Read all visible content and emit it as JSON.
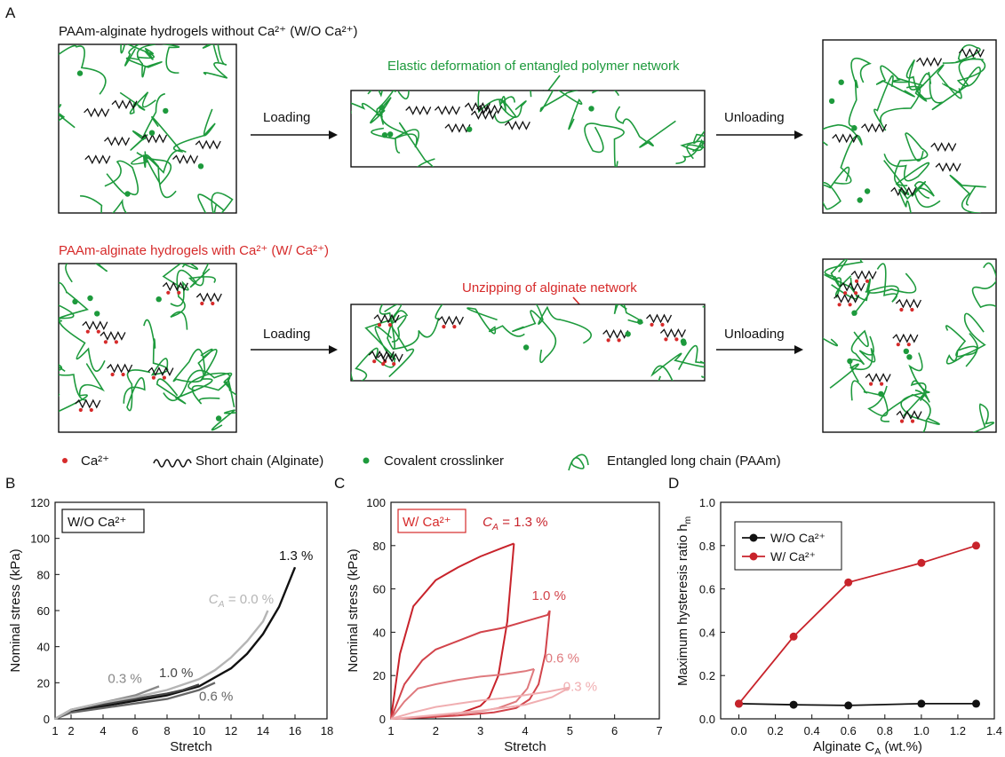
{
  "colors": {
    "green": "#1d9a3c",
    "red": "#d62a2a",
    "black": "#111111",
    "grayB": [
      "#111111",
      "#444444",
      "#666666",
      "#888888",
      "#b5b5b5"
    ],
    "redC": [
      "#c8232b",
      "#d2444b",
      "#df7a7e",
      "#f0aeb1"
    ]
  },
  "panelA": {
    "letter": "A",
    "row1_title": "PAAm-alginate hydrogels without Ca²⁺ (W/O Ca²⁺)",
    "row1_note": "Elastic deformation of entangled polymer network",
    "row2_title": "PAAm-alginate hydrogels with Ca²⁺ (W/ Ca²⁺)",
    "row2_note": "Unzipping of alginate network",
    "loading": "Loading",
    "unloading": "Unloading",
    "legend": {
      "ca": "Ca²⁺",
      "short_chain": "Short chain (Alginate)",
      "crosslinker": "Covalent crosslinker",
      "long_chain": "Entangled long chain (PAAm)"
    }
  },
  "chart_data": [
    {
      "panel": "B",
      "type": "line",
      "box_label": "W/O Ca²⁺",
      "xlabel": "Stretch",
      "ylabel": "Nominal stress (kPa)",
      "xlim": [
        1,
        18
      ],
      "ylim": [
        0,
        120
      ],
      "xticks": [
        1,
        2,
        4,
        6,
        8,
        10,
        12,
        14,
        16,
        18
      ],
      "yticks": [
        0,
        20,
        40,
        60,
        80,
        100,
        120
      ],
      "series": [
        {
          "name": "1.3 %",
          "x": [
            1,
            2,
            4,
            6,
            8,
            10,
            12,
            13,
            14,
            15,
            16
          ],
          "y": [
            0,
            4,
            7,
            10,
            13,
            18,
            28,
            36,
            47,
            62,
            84
          ]
        },
        {
          "name": "1.0 %",
          "x": [
            1,
            2,
            4,
            6,
            8,
            9,
            10
          ],
          "y": [
            0,
            5,
            8,
            11,
            14,
            16,
            19
          ]
        },
        {
          "name": "0.6 %",
          "x": [
            1,
            2,
            4,
            6,
            8,
            10,
            11
          ],
          "y": [
            0,
            3.5,
            6,
            8.5,
            11,
            16,
            20
          ]
        },
        {
          "name": "0.3 %",
          "x": [
            1,
            2,
            4,
            6,
            7.5
          ],
          "y": [
            0,
            5,
            9,
            13,
            18
          ]
        },
        {
          "name": "C_A = 0.0 %",
          "x": [
            1,
            2,
            4,
            6,
            8,
            10,
            11,
            12,
            13,
            14,
            14.3
          ],
          "y": [
            0,
            5,
            9,
            12,
            16,
            22,
            27,
            34,
            43,
            54,
            60
          ]
        }
      ],
      "labels": [
        {
          "text": "1.3 %",
          "x": 15.0,
          "y": 88
        },
        {
          "text": "C",
          "sub": "A",
          "rest": " = 0.0 %",
          "x": 10.6,
          "y": 64
        },
        {
          "text": "0.3 %",
          "x": 4.3,
          "y": 20
        },
        {
          "text": "1.0 %",
          "x": 7.5,
          "y": 23
        },
        {
          "text": "0.6 %",
          "x": 10.0,
          "y": 10
        }
      ]
    },
    {
      "panel": "C",
      "type": "line",
      "box_label": "W/ Ca²⁺",
      "xlabel": "Stretch",
      "ylabel": "Nominal stress (kPa)",
      "xlim": [
        1,
        7
      ],
      "ylim": [
        0,
        100
      ],
      "xticks": [
        1,
        2,
        3,
        4,
        5,
        6,
        7
      ],
      "yticks": [
        0,
        20,
        40,
        60,
        80,
        100
      ],
      "series": [
        {
          "name": "1.3 %",
          "load_x": [
            1,
            1.2,
            1.5,
            2,
            2.5,
            3,
            3.5,
            3.75
          ],
          "load_y": [
            0,
            30,
            52,
            64,
            70,
            75,
            79,
            81
          ],
          "unload_x": [
            3.75,
            3.6,
            3.4,
            3.2,
            3.0,
            2.6,
            2.0,
            1.5,
            1
          ],
          "unload_y": [
            81,
            45,
            20,
            10,
            6,
            3,
            1,
            0.5,
            0
          ]
        },
        {
          "name": "1.0 %",
          "load_x": [
            1,
            1.3,
            1.7,
            2,
            2.5,
            3,
            3.5,
            4,
            4.5,
            4.55
          ],
          "load_y": [
            0,
            16,
            27,
            32,
            36,
            40,
            42,
            45,
            48,
            50
          ],
          "unload_x": [
            4.55,
            4.45,
            4.3,
            4.1,
            3.8,
            3.3,
            2.5,
            1.8,
            1
          ],
          "unload_y": [
            50,
            30,
            16,
            9,
            5,
            3,
            1.5,
            0.7,
            0
          ]
        },
        {
          "name": "0.6 %",
          "load_x": [
            1,
            1.3,
            1.6,
            2,
            2.5,
            3,
            3.5,
            4,
            4.2
          ],
          "load_y": [
            0,
            8,
            14,
            16,
            18,
            19.5,
            20.5,
            22,
            23
          ],
          "unload_x": [
            4.2,
            4.05,
            3.8,
            3.4,
            3.0,
            2.5,
            2.0,
            1.5,
            1
          ],
          "unload_y": [
            23,
            14,
            8,
            5,
            3.5,
            2.5,
            1.5,
            0.7,
            0
          ]
        },
        {
          "name": "0.3 %",
          "load_x": [
            1,
            1.5,
            2,
            2.5,
            3,
            3.5,
            4,
            4.5,
            5.0
          ],
          "load_y": [
            0,
            3,
            5.5,
            7,
            8.5,
            9.5,
            11,
            12.5,
            14.5
          ],
          "unload_x": [
            5.0,
            4.6,
            4.0,
            3.5,
            3.0,
            2.5,
            2.0,
            1.5,
            1
          ],
          "unload_y": [
            14.5,
            10,
            6.5,
            5,
            3.8,
            2.8,
            1.8,
            0.8,
            0
          ]
        }
      ],
      "labels": [
        {
          "text": "C",
          "sub": "A",
          "rest": " = 1.3 %",
          "x": 3.05,
          "y": 89
        },
        {
          "text": "1.0 %",
          "x": 4.15,
          "y": 55
        },
        {
          "text": "0.6 %",
          "x": 4.45,
          "y": 26
        },
        {
          "text": "0.3 %",
          "x": 4.85,
          "y": 13
        }
      ]
    },
    {
      "panel": "D",
      "type": "line",
      "xlabel": "Alginate C",
      "xlabel_sub": "A",
      "xlabel_rest": " (wt.%)",
      "ylabel": "Maximum hysteresis ratio h",
      "ylabel_sub": "m",
      "xlim": [
        -0.1,
        1.4
      ],
      "ylim": [
        0,
        1.0
      ],
      "xticks": [
        0.0,
        0.2,
        0.4,
        0.6,
        0.8,
        1.0,
        1.2,
        1.4
      ],
      "yticks": [
        0.0,
        0.2,
        0.4,
        0.6,
        0.8,
        1.0
      ],
      "series": [
        {
          "name": "W/O Ca²⁺",
          "x": [
            0,
            0.3,
            0.6,
            1.0,
            1.3
          ],
          "y": [
            0.07,
            0.065,
            0.062,
            0.07,
            0.07
          ]
        },
        {
          "name": "W/ Ca²⁺",
          "x": [
            0,
            0.3,
            0.6,
            1.0,
            1.3
          ],
          "y": [
            0.07,
            0.38,
            0.63,
            0.72,
            0.8
          ]
        }
      ],
      "legend_placement": "top-left"
    }
  ],
  "panel_letters": {
    "B": "B",
    "C": "C",
    "D": "D"
  }
}
